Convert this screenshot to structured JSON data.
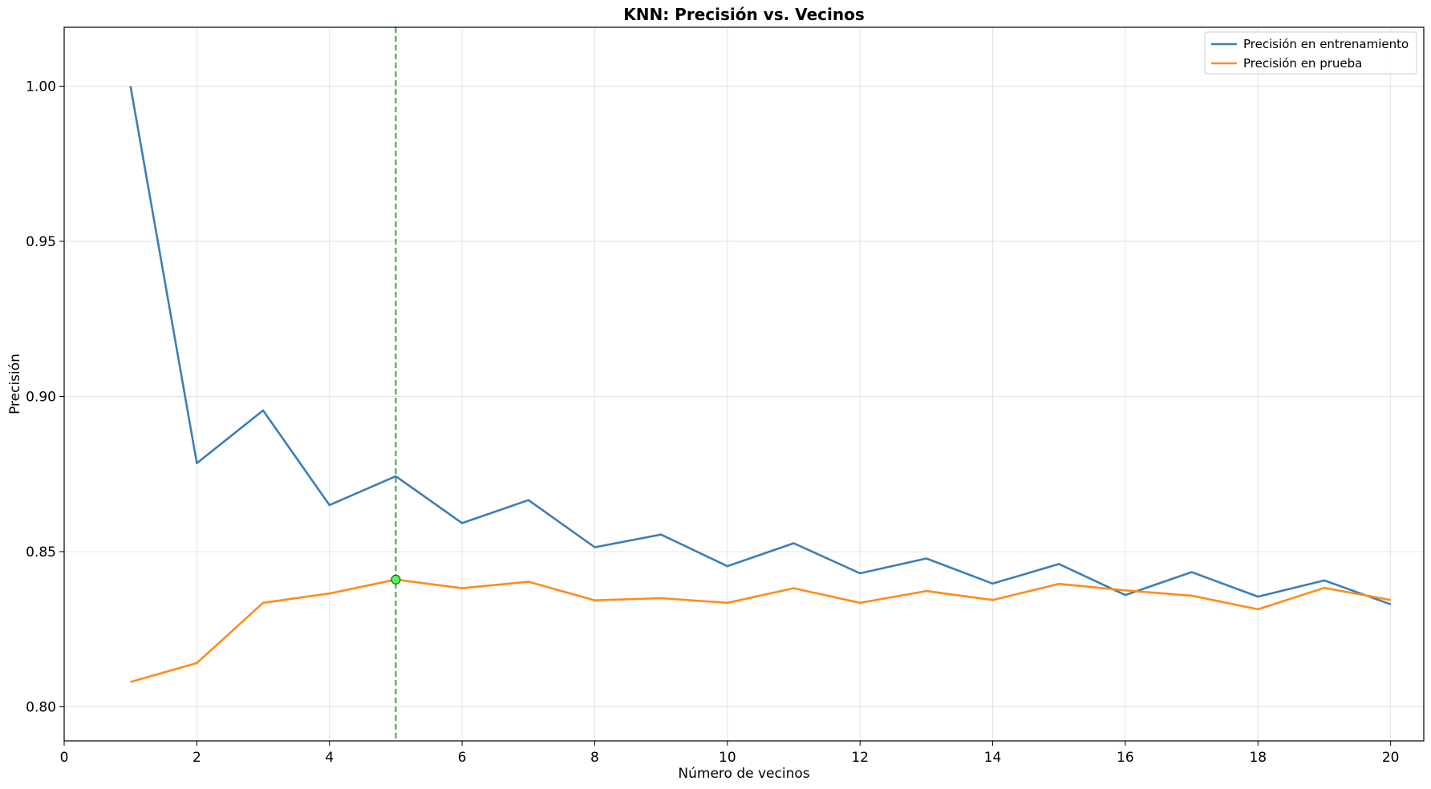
{
  "chart_data": {
    "type": "line",
    "title": "KNN: Precisión vs. Vecinos",
    "xlabel": "Número de vecinos",
    "ylabel": "Precisión",
    "xlim": [
      0,
      20.5
    ],
    "ylim": [
      0.789,
      1.019
    ],
    "xticks": [
      0,
      2,
      4,
      6,
      8,
      10,
      12,
      14,
      16,
      18,
      20
    ],
    "yticks": [
      0.8,
      0.85,
      0.9,
      0.95,
      1.0
    ],
    "grid": true,
    "legend_position": "top-right",
    "x": [
      1,
      2,
      3,
      4,
      5,
      6,
      7,
      8,
      9,
      10,
      11,
      12,
      13,
      14,
      15,
      16,
      17,
      18,
      19,
      20
    ],
    "series": [
      {
        "name": "Precisión en entrenamiento",
        "color": "#3d7eb5",
        "values": [
          1.0,
          0.8785,
          0.8955,
          0.865,
          0.8743,
          0.8592,
          0.8666,
          0.8514,
          0.8555,
          0.8453,
          0.8527,
          0.843,
          0.8478,
          0.8397,
          0.846,
          0.836,
          0.8434,
          0.8355,
          0.8407,
          0.833
        ]
      },
      {
        "name": "Precisión en prueba",
        "color": "#ff8c1a",
        "values": [
          0.808,
          0.8141,
          0.8335,
          0.8365,
          0.841,
          0.8382,
          0.8403,
          0.8343,
          0.835,
          0.8335,
          0.8382,
          0.8335,
          0.8373,
          0.8344,
          0.8396,
          0.8375,
          0.8358,
          0.8314,
          0.8383,
          0.8344
        ]
      }
    ],
    "best_k": {
      "x": 5,
      "y": 0.841,
      "line_color": "#3aa83a",
      "marker_color": "#5cf05c"
    }
  }
}
